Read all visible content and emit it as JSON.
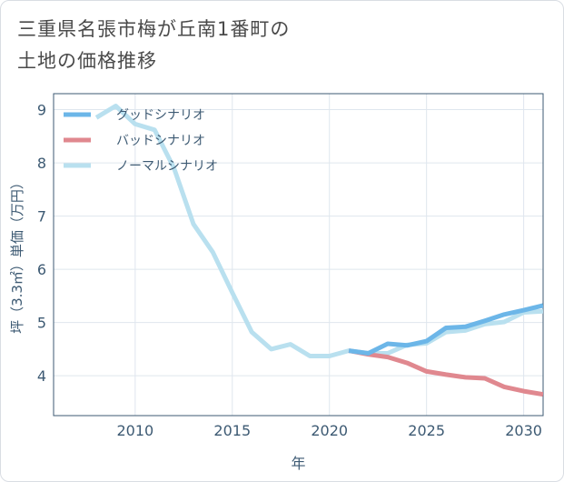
{
  "title": {
    "line1": "三重県名張市梅が丘南1番町の",
    "line2": "土地の価格推移"
  },
  "chart_data": {
    "type": "line",
    "title": "三重県名張市梅が丘南1番町の土地の価格推移",
    "xlabel": "年",
    "ylabel": "坪（3.3㎡）単価（万円）",
    "xlim": [
      2005.8,
      2031
    ],
    "ylim": [
      3.25,
      9.3
    ],
    "x_ticks": [
      2010,
      2015,
      2020,
      2025,
      2030
    ],
    "y_ticks": [
      4,
      5,
      6,
      7,
      8,
      9
    ],
    "grid": true,
    "legend_position": "top-left",
    "series": [
      {
        "name": "グッドシナリオ",
        "color": "#6cb6e8",
        "x": [
          2021,
          2022,
          2023,
          2024,
          2025,
          2026,
          2027,
          2028,
          2029,
          2030,
          2031
        ],
        "y": [
          4.47,
          4.42,
          4.6,
          4.57,
          4.65,
          4.9,
          4.92,
          5.03,
          5.15,
          5.23,
          5.32
        ]
      },
      {
        "name": "バッドシナリオ",
        "color": "#e0888f",
        "x": [
          2021,
          2022,
          2023,
          2024,
          2025,
          2026,
          2027,
          2028,
          2029,
          2030,
          2031
        ],
        "y": [
          4.47,
          4.4,
          4.35,
          4.24,
          4.08,
          4.02,
          3.97,
          3.95,
          3.79,
          3.71,
          3.65
        ]
      },
      {
        "name": "ノーマルシナリオ",
        "color": "#b9e0ef",
        "x": [
          2008,
          2009,
          2010,
          2011,
          2012,
          2013,
          2014,
          2015,
          2016,
          2017,
          2018,
          2019,
          2020,
          2021,
          2022,
          2023,
          2024,
          2025,
          2026,
          2027,
          2028,
          2029,
          2030,
          2031
        ],
        "y": [
          8.85,
          9.07,
          8.73,
          8.62,
          7.9,
          6.85,
          6.32,
          5.56,
          4.82,
          4.5,
          4.59,
          4.37,
          4.37,
          4.47,
          4.42,
          4.42,
          4.58,
          4.61,
          4.82,
          4.85,
          4.97,
          5.01,
          5.19,
          5.21
        ]
      }
    ]
  }
}
